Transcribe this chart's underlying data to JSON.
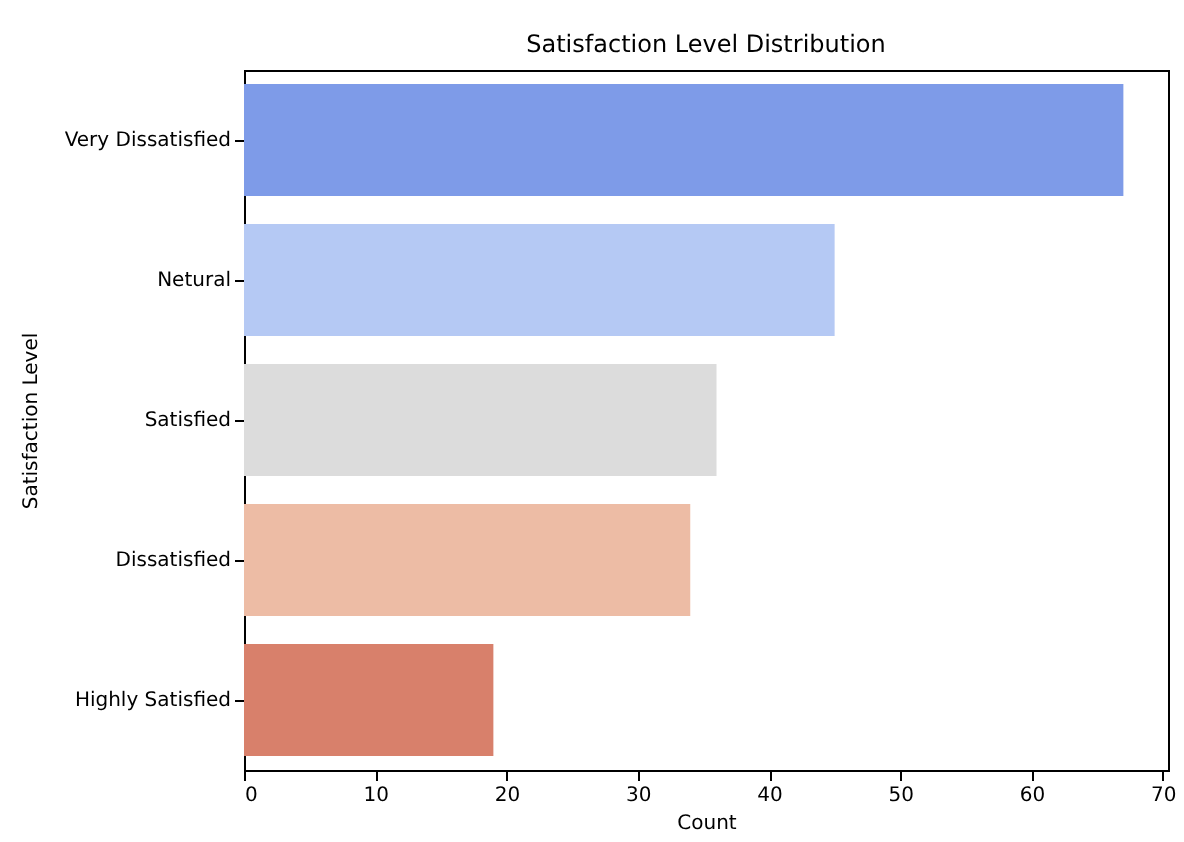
{
  "chart_data": {
    "type": "bar",
    "orientation": "horizontal",
    "title": "Satisfaction Level Distribution",
    "xlabel": "Count",
    "ylabel": "Satisfaction Level",
    "categories": [
      "Very Dissatisfied",
      "Netural",
      "Satisfied",
      "Dissatisfied",
      "Highly Satisfied"
    ],
    "values": [
      67,
      45,
      36,
      34,
      19
    ],
    "colors": [
      "#7e9be8",
      "#b5c9f4",
      "#dcdcdc",
      "#edbca5",
      "#d8806b"
    ],
    "xlim": [
      0,
      70.4
    ],
    "xticks": [
      0,
      10,
      20,
      30,
      40,
      50,
      60,
      70
    ],
    "grid": false
  }
}
